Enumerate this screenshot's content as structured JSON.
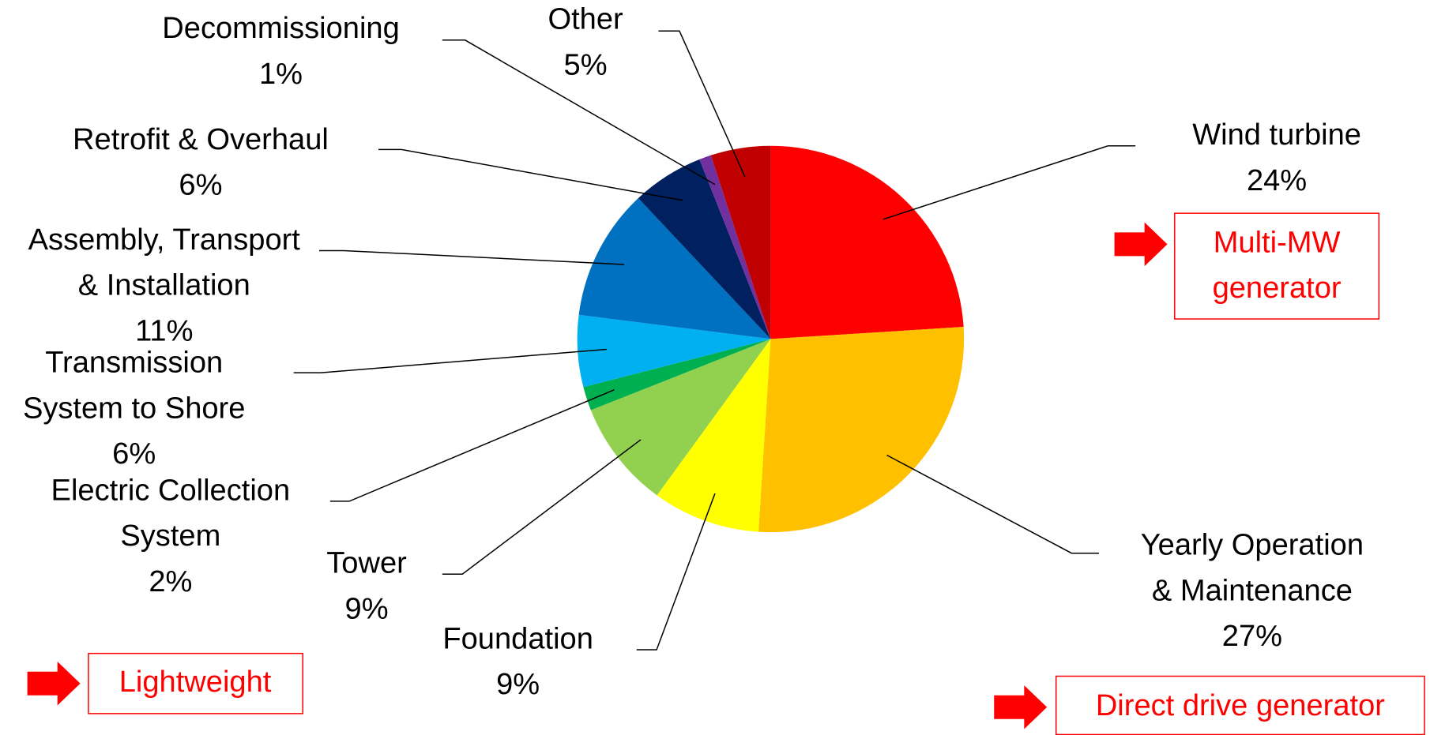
{
  "chart_data": {
    "type": "pie",
    "categories": [
      "Wind turbine",
      "Yearly Operation\n& Maintenance",
      "Foundation",
      "Tower",
      "Electric Collection\nSystem",
      "Transmission\nSystem to Shore",
      "Assembly, Transport\n& Installation",
      "Retrofit & Overhaul",
      "Decommissioning",
      "Other"
    ],
    "values": [
      24,
      27,
      9,
      9,
      2,
      6,
      11,
      6,
      1,
      5
    ],
    "value_labels": [
      "24%",
      "27%",
      "9%",
      "9%",
      "2%",
      "6%",
      "11%",
      "6%",
      "1%",
      "5%"
    ],
    "colors": [
      "#ff0000",
      "#ffc000",
      "#ffff00",
      "#92d050",
      "#00b050",
      "#00b0f0",
      "#0070c0",
      "#002060",
      "#7030a0",
      "#c00000"
    ],
    "annotations": [
      "Multi-MW\ngenerator",
      "Lightweight",
      "Direct drive generator"
    ]
  }
}
